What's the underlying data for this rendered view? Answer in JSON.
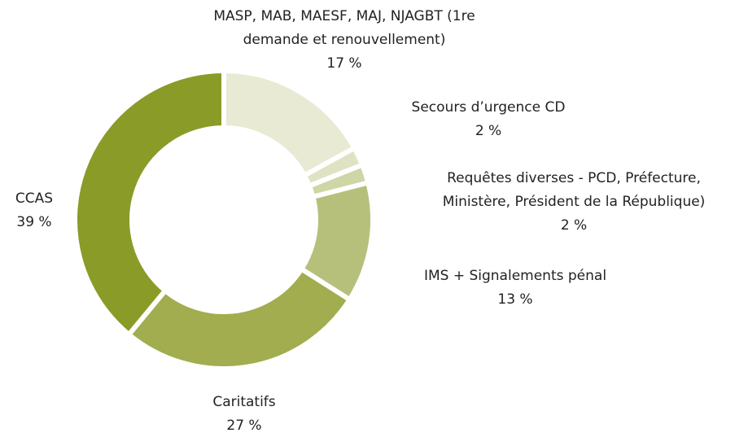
{
  "chart_data": {
    "type": "donut",
    "categories": [
      "MASP, MAB, MAESF, MAJ, NJAGBT (1re demande et renouvellement)",
      "Secours d’urgence CD",
      "Requêtes diverses - PCD, Préfecture, Ministère, Président de la République)",
      "IMS + Signalements pénal",
      "Caritatifs",
      "CCAS"
    ],
    "values": [
      17,
      2,
      2,
      13,
      27,
      39
    ],
    "value_labels": [
      "17 %",
      "2 %",
      "2 %",
      "13 %",
      "27 %",
      "39 %"
    ],
    "colors": [
      "#e8ead3",
      "#dfe3c3",
      "#cdd6a4",
      "#b6c07b",
      "#a1ad4e",
      "#8b9b28"
    ]
  }
}
